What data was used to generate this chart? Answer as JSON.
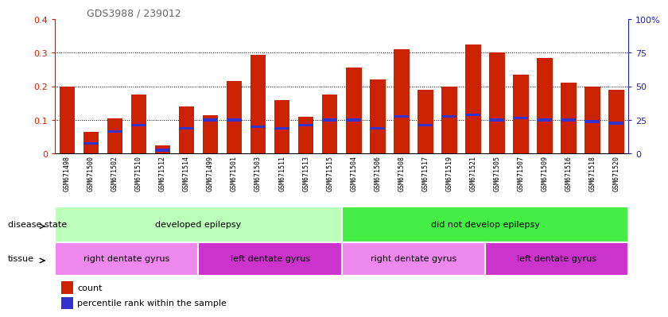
{
  "title": "GDS3988 / 239012",
  "samples": [
    "GSM671498",
    "GSM671500",
    "GSM671502",
    "GSM671510",
    "GSM671512",
    "GSM671514",
    "GSM671499",
    "GSM671501",
    "GSM671503",
    "GSM671511",
    "GSM671513",
    "GSM671515",
    "GSM671504",
    "GSM671506",
    "GSM671508",
    "GSM671517",
    "GSM671519",
    "GSM671521",
    "GSM671505",
    "GSM671507",
    "GSM671509",
    "GSM671516",
    "GSM671518",
    "GSM671520"
  ],
  "counts": [
    0.2,
    0.065,
    0.105,
    0.175,
    0.025,
    0.14,
    0.115,
    0.215,
    0.295,
    0.16,
    0.11,
    0.175,
    0.255,
    0.22,
    0.31,
    0.19,
    0.2,
    0.325,
    0.3,
    0.235,
    0.285,
    0.21,
    0.2,
    0.19
  ],
  "percentiles": [
    0.0,
    0.03,
    0.065,
    0.085,
    0.01,
    0.075,
    0.1,
    0.1,
    0.08,
    0.075,
    0.085,
    0.1,
    0.1,
    0.075,
    0.11,
    0.085,
    0.11,
    0.115,
    0.1,
    0.105,
    0.1,
    0.1,
    0.095,
    0.09
  ],
  "ylim_left": [
    0,
    0.4
  ],
  "ylim_right": [
    0,
    100
  ],
  "yticks_left": [
    0,
    0.1,
    0.2,
    0.3,
    0.4
  ],
  "yticks_right": [
    0,
    25,
    50,
    75,
    100
  ],
  "bar_color": "#CC2200",
  "percentile_color": "#3333CC",
  "tick_bg_color": "#dddddd",
  "disease_state_groups": [
    {
      "label": "developed epilepsy",
      "start": 0,
      "end": 12,
      "color": "#bbffbb"
    },
    {
      "label": "did not develop epilepsy",
      "start": 12,
      "end": 24,
      "color": "#44ee44"
    }
  ],
  "tissue_groups": [
    {
      "label": "right dentate gyrus",
      "start": 0,
      "end": 6,
      "color": "#ee88ee"
    },
    {
      "label": "left dentate gyrus",
      "start": 6,
      "end": 12,
      "color": "#cc33cc"
    },
    {
      "label": "right dentate gyrus",
      "start": 12,
      "end": 18,
      "color": "#ee88ee"
    },
    {
      "label": "left dentate gyrus",
      "start": 18,
      "end": 24,
      "color": "#cc33cc"
    }
  ],
  "legend_count_color": "#CC2200",
  "legend_percentile_color": "#3333CC",
  "left_axis_color": "#CC2200",
  "right_axis_color": "#2222BB",
  "grid_yticks": [
    0.1,
    0.2,
    0.3
  ]
}
